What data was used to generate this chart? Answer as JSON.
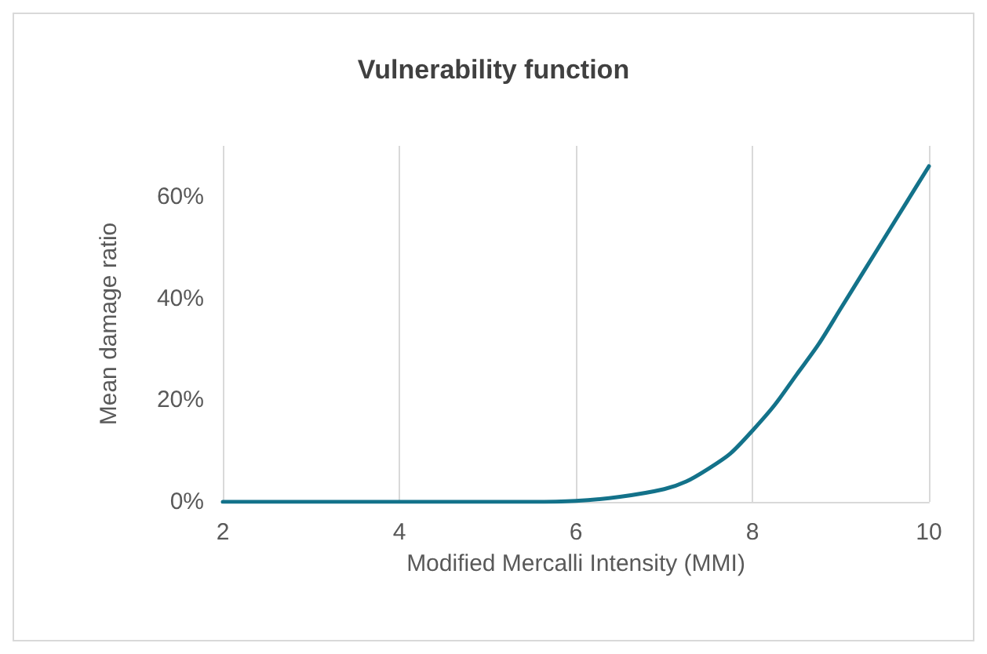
{
  "chart_data": {
    "type": "line",
    "title": "Vulnerability function",
    "xlabel": "Modified Mercalli Intensity (MMI)",
    "ylabel": "Mean damage ratio",
    "x": [
      2,
      3,
      4,
      5,
      5.5,
      6,
      6.5,
      7,
      7.25,
      7.5,
      7.75,
      8,
      8.25,
      8.5,
      8.75,
      9,
      9.25,
      9.5,
      9.75,
      10
    ],
    "series": [
      {
        "color": "#13728a",
        "values": [
          0,
          0,
          0,
          0,
          0,
          0.2,
          1,
          2.5,
          4,
          6.5,
          9.5,
          14,
          19,
          25,
          31,
          38,
          45,
          52,
          59,
          66
        ]
      }
    ],
    "xlim": [
      2,
      10
    ],
    "xticks": [
      2,
      4,
      6,
      8,
      10
    ],
    "ylim": [
      0,
      70
    ],
    "yticks": [
      {
        "value": 0,
        "label": "0%"
      },
      {
        "value": 20,
        "label": "20%"
      },
      {
        "value": 40,
        "label": "40%"
      },
      {
        "value": 60,
        "label": "60%"
      }
    ],
    "grid": "x",
    "marker": "none",
    "line_style": "solid"
  }
}
